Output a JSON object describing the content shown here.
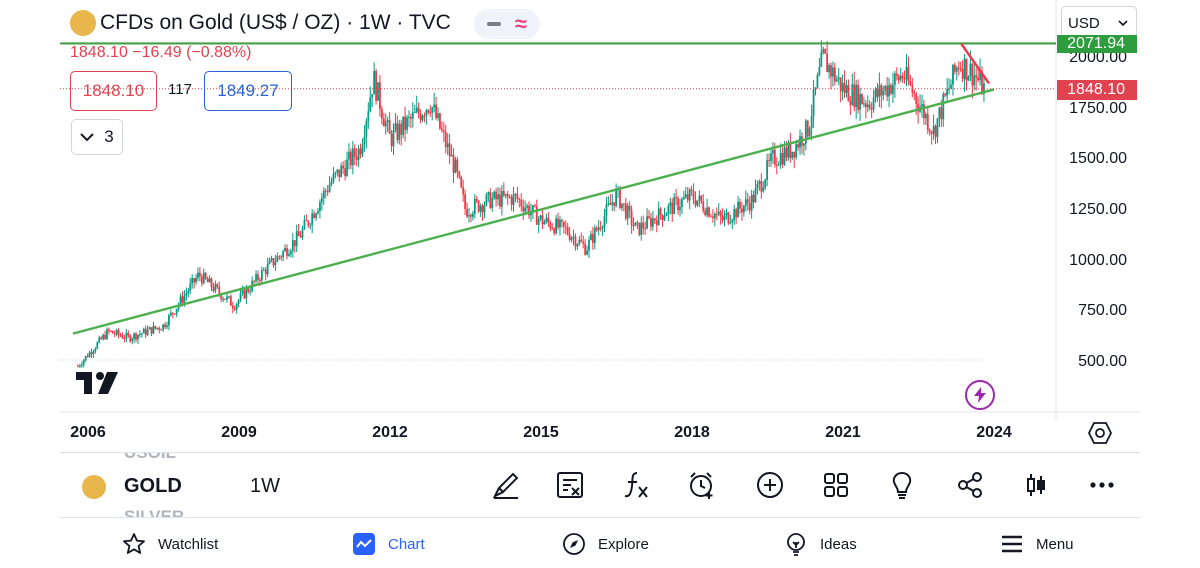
{
  "header": {
    "symbol_title": "CFDs on Gold (US$ / OZ) · 1W · TVC",
    "ohlc_line": "1848.10 −16.49 (−0.88%)",
    "sell_price": "1848.10",
    "spread": "117",
    "buy_price": "1849.27",
    "indicators_count": "3",
    "currency": "USD"
  },
  "price_axis": {
    "ticks": [
      "2000.00",
      "1750.00",
      "1500.00",
      "1250.00",
      "1000.00",
      "750.00",
      "500.00"
    ],
    "current_price_tag": "1848.10",
    "top_line_tag": "2071.94"
  },
  "time_axis": {
    "ticks": [
      "2006",
      "2009",
      "2012",
      "2015",
      "2018",
      "2021",
      "2024"
    ]
  },
  "chart_data": {
    "type": "candlestick",
    "symbol": "CFDs on Gold (US$ / OZ)",
    "interval": "1W",
    "x": [
      2005.8,
      2006.4,
      2006.8,
      2007.5,
      2008.2,
      2008.9,
      2009.5,
      2010.2,
      2010.8,
      2011.4,
      2011.67,
      2012.0,
      2012.8,
      2013.3,
      2013.5,
      2014.0,
      2014.5,
      2015.0,
      2015.5,
      2015.9,
      2016.5,
      2016.9,
      2017.5,
      2018.0,
      2018.6,
      2019.2,
      2019.6,
      2020.0,
      2020.3,
      2020.6,
      2021.0,
      2021.5,
      2022.2,
      2022.8,
      2023.3,
      2023.6,
      2023.8
    ],
    "close": [
      480,
      650,
      620,
      680,
      930,
      780,
      950,
      1120,
      1380,
      1550,
      1900,
      1600,
      1780,
      1450,
      1250,
      1300,
      1310,
      1200,
      1150,
      1060,
      1330,
      1150,
      1250,
      1320,
      1200,
      1300,
      1500,
      1550,
      1650,
      2000,
      1850,
      1780,
      1920,
      1640,
      1980,
      1920,
      1848.1
    ],
    "ylim": [
      300,
      2200
    ],
    "xlim": [
      2005.7,
      2025.0
    ],
    "horizontal_line": 2071.94,
    "current_price": 1848.1,
    "trendline": [
      [
        2005.7,
        640
      ],
      [
        2024.0,
        1845
      ]
    ],
    "down_line": [
      [
        2023.35,
        2070
      ],
      [
        2023.9,
        1875
      ]
    ],
    "colors": {
      "up": "#089981",
      "down": "#f23645",
      "trend": "#4caf50",
      "hline": "#43a047",
      "downline": "#f23645"
    }
  },
  "toolbar": {
    "ghost_above": "USOIL",
    "symbol": "GOLD",
    "resolution": "1W",
    "ghost_below": "SILVER",
    "tools": [
      "pencil-icon",
      "note-icon",
      "formula-icon",
      "alert-icon",
      "plus-icon",
      "grid-icon",
      "bulb-icon",
      "share-icon",
      "candle-icon",
      "more-icon"
    ]
  },
  "nav": {
    "watchlist": "Watchlist",
    "chart": "Chart",
    "explore": "Explore",
    "ideas": "Ideas",
    "menu": "Menu"
  }
}
